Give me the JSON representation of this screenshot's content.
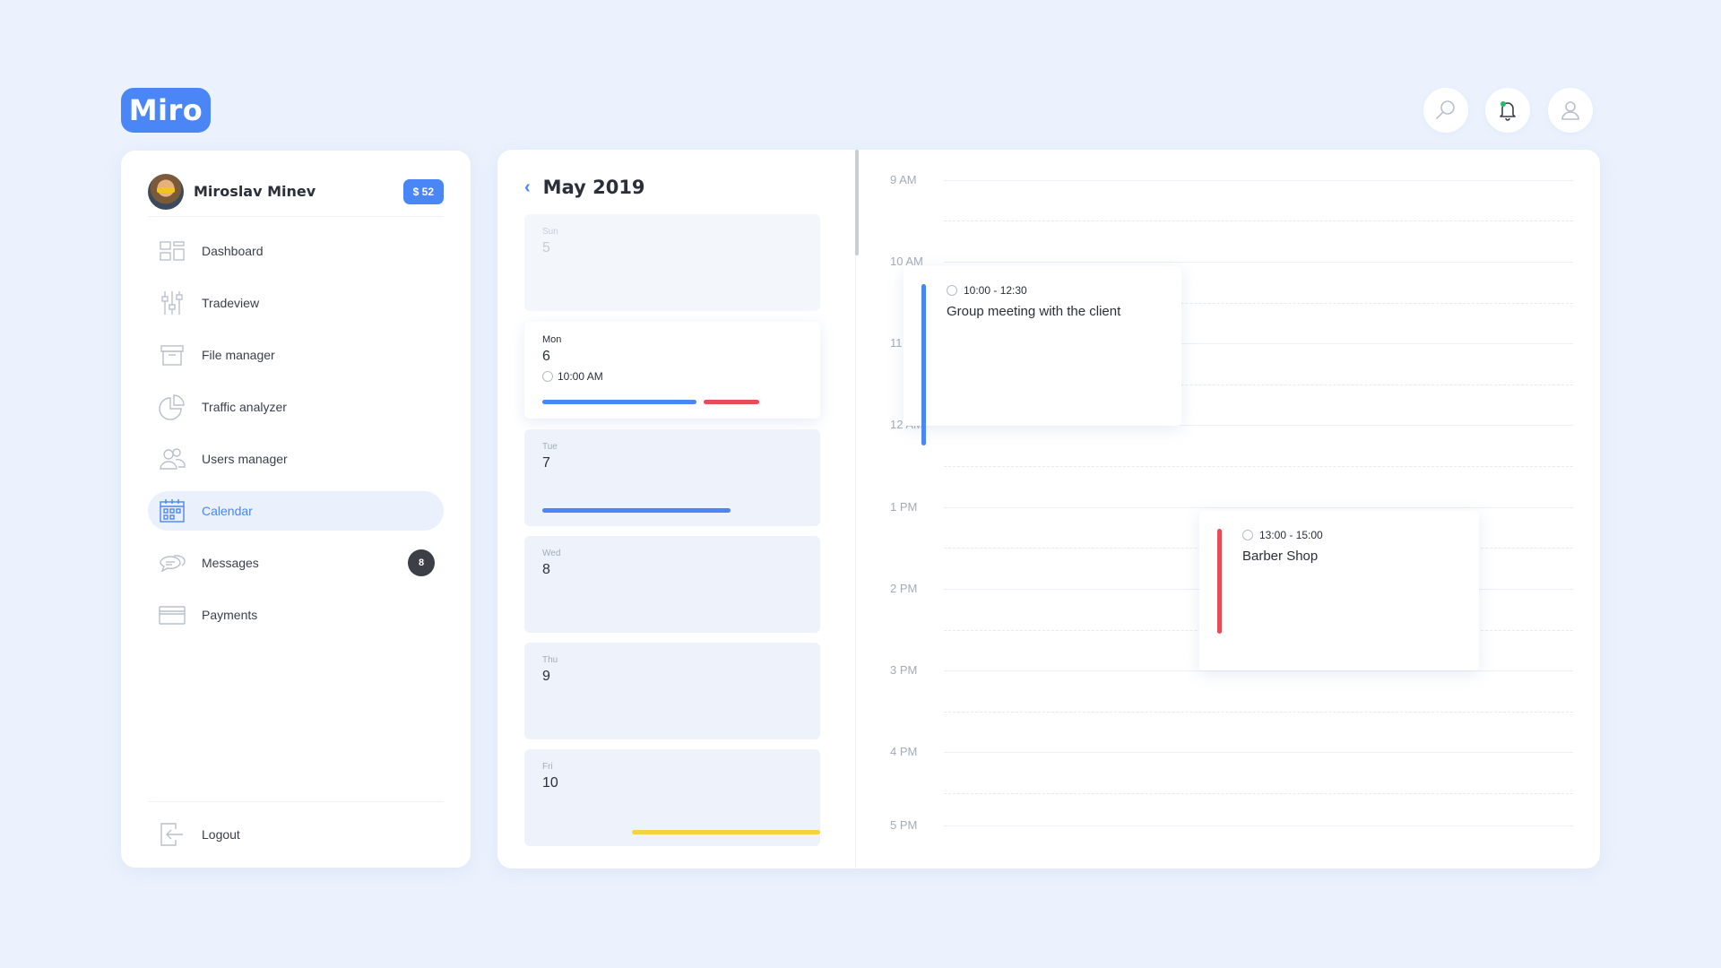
{
  "brand": {
    "logo": "Miro"
  },
  "topbar": {
    "icons": [
      "search-icon",
      "bell-icon",
      "user-icon"
    ],
    "notification_dot_color": "#1fbf6a"
  },
  "profile": {
    "name": "Miroslav Minev",
    "balance": "$ 52"
  },
  "sidebar": {
    "items": [
      {
        "label": "Dashboard",
        "icon": "dashboard-icon"
      },
      {
        "label": "Tradeview",
        "icon": "sliders-icon"
      },
      {
        "label": "File manager",
        "icon": "archive-icon"
      },
      {
        "label": "Traffic analyzer",
        "icon": "pie-chart-icon"
      },
      {
        "label": "Users manager",
        "icon": "users-icon"
      },
      {
        "label": "Calendar",
        "icon": "calendar-icon",
        "active": true
      },
      {
        "label": "Messages",
        "icon": "chat-icon",
        "count": "8"
      },
      {
        "label": "Payments",
        "icon": "card-icon"
      }
    ],
    "logout": {
      "label": "Logout",
      "icon": "logout-icon"
    }
  },
  "calendar": {
    "month": "May 2019",
    "days": [
      {
        "name": "Sun",
        "num": "5",
        "state": "past"
      },
      {
        "name": "Mon",
        "num": "6",
        "time": "10:00 AM",
        "state": "selected"
      },
      {
        "name": "Tue",
        "num": "7"
      },
      {
        "name": "Wed",
        "num": "8"
      },
      {
        "name": "Thu",
        "num": "9"
      },
      {
        "name": "Fri",
        "num": "10"
      }
    ]
  },
  "timeline": {
    "hours": [
      "9 AM",
      "10 AM",
      "11 AM",
      "12 AM",
      "1 PM",
      "2 PM",
      "3 PM",
      "4 PM",
      "5 PM"
    ],
    "events": [
      {
        "time": "10:00 - 12:30",
        "title": "Group meeting with the client",
        "color": "#4a86f5"
      },
      {
        "time": "13:00 - 15:00",
        "title": "Barber Shop",
        "color": "#ea4b55"
      }
    ]
  },
  "colors": {
    "accent": "#4a86f5",
    "red": "#ea4b55",
    "yellow": "#f5d33d"
  }
}
